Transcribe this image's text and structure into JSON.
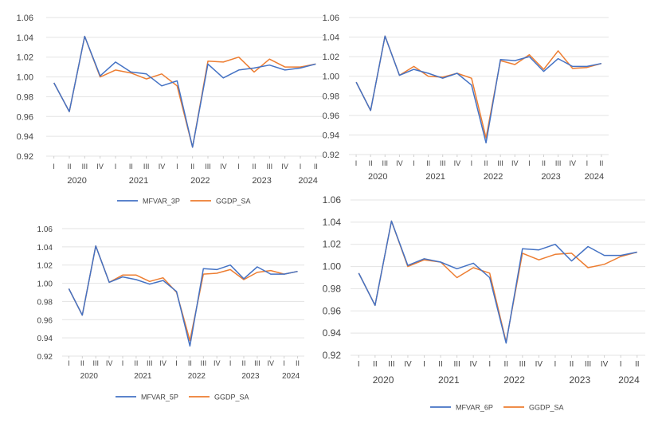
{
  "chart_data": [
    {
      "type": "line",
      "categories": [
        "I",
        "II",
        "III",
        "IV",
        "I",
        "II",
        "III",
        "IV",
        "I",
        "II",
        "III",
        "IV",
        "I",
        "II",
        "III",
        "IV",
        "I",
        "II"
      ],
      "year_labels": [
        "2020",
        "2021",
        "2022",
        "2023",
        "2024"
      ],
      "year_label_quarters": [
        1.5,
        5.5,
        9.5,
        13.5,
        16.5
      ],
      "yticks": [
        "0.92",
        "0.94",
        "0.96",
        "0.98",
        "1.00",
        "1.02",
        "1.04",
        "1.06"
      ],
      "ylim": [
        0.92,
        1.06
      ],
      "grid": true,
      "legend_position": "bottom",
      "colors": {
        "blue": "#4472c4",
        "orange": "#ed7d31"
      },
      "series": [
        {
          "name": "MFVAR_3P",
          "color": "#4472c4",
          "values": [
            0.994,
            0.965,
            1.041,
            1.001,
            1.015,
            1.005,
            1.003,
            0.991,
            0.996,
            0.929,
            1.013,
            0.999,
            1.007,
            1.009,
            1.012,
            1.007,
            1.009,
            1.013
          ]
        },
        {
          "name": "GGDP_SA",
          "color": "#ed7d31",
          "values": [
            0.994,
            0.965,
            1.041,
            1.0,
            1.007,
            1.004,
            0.998,
            1.003,
            0.991,
            0.929,
            1.016,
            1.015,
            1.02,
            1.005,
            1.018,
            1.01,
            1.01,
            1.013
          ]
        }
      ]
    },
    {
      "type": "line",
      "categories": [
        "I",
        "II",
        "III",
        "IV",
        "I",
        "II",
        "III",
        "IV",
        "I",
        "II",
        "III",
        "IV",
        "I",
        "II",
        "III",
        "IV",
        "I",
        "II"
      ],
      "year_labels": [
        "2020",
        "2021",
        "2022",
        "2023",
        "2024"
      ],
      "year_label_quarters": [
        1.5,
        5.5,
        9.5,
        13.5,
        16.5
      ],
      "yticks": [
        "0.92",
        "0.94",
        "0.96",
        "0.98",
        "1.00",
        "1.02",
        "1.04",
        "1.06"
      ],
      "ylim": [
        0.92,
        1.06
      ],
      "grid": true,
      "legend_position": "none",
      "series": [
        {
          "name": "",
          "color": "#4472c4",
          "values": [
            0.994,
            0.965,
            1.041,
            1.001,
            1.007,
            1.003,
            0.998,
            1.003,
            0.991,
            0.932,
            1.017,
            1.016,
            1.02,
            1.005,
            1.018,
            1.01,
            1.01,
            1.013
          ]
        },
        {
          "name": "",
          "color": "#ed7d31",
          "values": [
            0.994,
            0.965,
            1.041,
            1.001,
            1.01,
            1.0,
            0.999,
            1.003,
            0.998,
            0.937,
            1.016,
            1.012,
            1.022,
            1.007,
            1.026,
            1.008,
            1.009,
            1.013
          ]
        }
      ]
    },
    {
      "type": "line",
      "categories": [
        "I",
        "II",
        "III",
        "IV",
        "I",
        "II",
        "III",
        "IV",
        "I",
        "II",
        "III",
        "IV",
        "I",
        "II",
        "III",
        "IV",
        "I",
        "II"
      ],
      "year_labels": [
        "2020",
        "2021",
        "2022",
        "2023",
        "2024"
      ],
      "year_label_quarters": [
        1.5,
        5.5,
        9.5,
        13.5,
        16.5
      ],
      "yticks": [
        "0.92",
        "0.94",
        "0.96",
        "0.98",
        "1.00",
        "1.02",
        "1.04",
        "1.06"
      ],
      "ylim": [
        0.92,
        1.06
      ],
      "grid": true,
      "legend_position": "bottom",
      "series": [
        {
          "name": "MFVAR_5P",
          "color": "#4472c4",
          "values": [
            0.994,
            0.965,
            1.041,
            1.001,
            1.007,
            1.004,
            0.999,
            1.003,
            0.991,
            0.931,
            1.016,
            1.015,
            1.02,
            1.005,
            1.018,
            1.01,
            1.01,
            1.013
          ]
        },
        {
          "name": "GGDP_SA",
          "color": "#ed7d31",
          "values": [
            0.994,
            0.965,
            1.041,
            1.001,
            1.009,
            1.009,
            1.002,
            1.006,
            0.99,
            0.937,
            1.01,
            1.011,
            1.015,
            1.004,
            1.012,
            1.014,
            1.01,
            1.013
          ]
        }
      ]
    },
    {
      "type": "line",
      "categories": [
        "I",
        "II",
        "III",
        "IV",
        "I",
        "II",
        "III",
        "IV",
        "I",
        "II",
        "III",
        "IV",
        "I",
        "II",
        "III",
        "IV",
        "I",
        "II"
      ],
      "year_labels": [
        "2020",
        "2021",
        "2022",
        "2023",
        "2024"
      ],
      "year_label_quarters": [
        1.5,
        5.5,
        9.5,
        13.5,
        16.5
      ],
      "yticks": [
        "0.92",
        "0.94",
        "0.96",
        "0.98",
        "1.00",
        "1.02",
        "1.04",
        "1.06"
      ],
      "ylim": [
        0.92,
        1.06
      ],
      "grid": true,
      "legend_position": "bottom",
      "series": [
        {
          "name": "MFVAR_6P",
          "color": "#4472c4",
          "values": [
            0.994,
            0.965,
            1.041,
            1.001,
            1.007,
            1.004,
            0.998,
            1.003,
            0.99,
            0.931,
            1.016,
            1.015,
            1.02,
            1.005,
            1.018,
            1.01,
            1.01,
            1.013
          ]
        },
        {
          "name": "GGDP_SA",
          "color": "#ed7d31",
          "values": [
            0.994,
            0.965,
            1.041,
            1.0,
            1.006,
            1.004,
            0.99,
            0.999,
            0.994,
            0.932,
            1.012,
            1.006,
            1.011,
            1.012,
            0.999,
            1.002,
            1.009,
            1.013
          ]
        }
      ]
    }
  ]
}
